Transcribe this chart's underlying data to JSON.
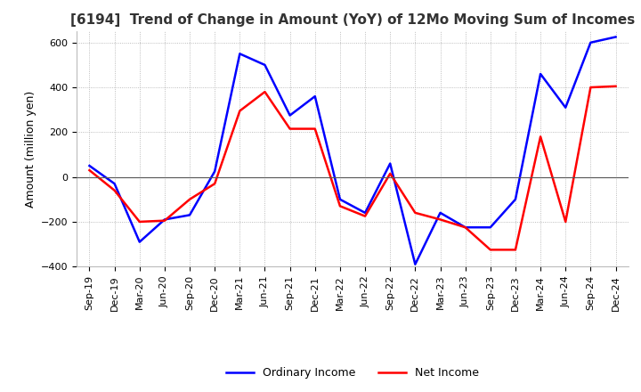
{
  "title": "[6194]  Trend of Change in Amount (YoY) of 12Mo Moving Sum of Incomes",
  "ylabel": "Amount (million yen)",
  "x_labels": [
    "Sep-19",
    "Dec-19",
    "Mar-20",
    "Jun-20",
    "Sep-20",
    "Dec-20",
    "Mar-21",
    "Jun-21",
    "Sep-21",
    "Dec-21",
    "Mar-22",
    "Jun-22",
    "Sep-22",
    "Dec-22",
    "Mar-23",
    "Jun-23",
    "Sep-23",
    "Dec-23",
    "Mar-24",
    "Jun-24",
    "Sep-24",
    "Dec-24"
  ],
  "ordinary_income": [
    50,
    -30,
    -290,
    -190,
    -170,
    25,
    550,
    500,
    275,
    360,
    -100,
    -160,
    60,
    -390,
    -160,
    -225,
    -225,
    -100,
    460,
    310,
    600,
    625
  ],
  "net_income": [
    30,
    -60,
    -200,
    -195,
    -100,
    -30,
    295,
    380,
    215,
    215,
    -130,
    -175,
    15,
    -160,
    -190,
    -225,
    -325,
    -325,
    180,
    -200,
    400,
    405
  ],
  "ordinary_income_color": "#0000ff",
  "net_income_color": "#ff0000",
  "ylim": [
    -400,
    650
  ],
  "yticks": [
    -400,
    -200,
    0,
    200,
    400,
    600
  ],
  "background_color": "#ffffff",
  "grid_color": "#aaaaaa",
  "grid_style": "dotted",
  "title_fontsize": 11,
  "tick_fontsize": 8,
  "ylabel_fontsize": 9,
  "legend_ordinary": "Ordinary Income",
  "legend_net": "Net Income",
  "line_width": 1.8
}
